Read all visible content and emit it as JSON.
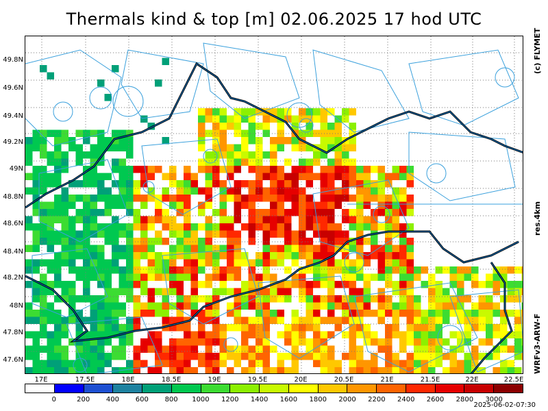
{
  "title": "Thermals kind & top [m]  02.06.2025 17 hod UTC",
  "side_labels": {
    "credit": "(c) FLYMET",
    "resolution": "res.4km",
    "model": "WRFv3-ARW-F"
  },
  "timestamp": "2025-06-02-07:30",
  "lat_labels": [
    "49.8N",
    "49.6N",
    "49.4N",
    "49.2N",
    "49N",
    "48.8N",
    "48.6N",
    "48.4N",
    "48.2N",
    "48N",
    "47.8N",
    "47.6N"
  ],
  "lon_labels": [
    "17E",
    "17.5E",
    "18E",
    "18.5E",
    "19E",
    "19.5E",
    "20E",
    "20.5E",
    "21E",
    "21.5E",
    "22E",
    "22.5E"
  ],
  "legend": {
    "values": [
      "0",
      "200",
      "400",
      "600",
      "800",
      "1000",
      "1200",
      "1400",
      "1600",
      "1800",
      "2000",
      "2200",
      "2400",
      "2600",
      "2800",
      "3000"
    ],
    "colors": [
      "#ffffff",
      "#0000ff",
      "#1e50d2",
      "#1e82a0",
      "#00a078",
      "#00c850",
      "#3cdc32",
      "#8cf000",
      "#c8fa00",
      "#ffff00",
      "#ffc800",
      "#ff9600",
      "#ff6400",
      "#ff2800",
      "#e60000",
      "#c80000",
      "#8c0000"
    ]
  },
  "colors": {
    "frame": "#000000",
    "grid": "#777777",
    "border_black": "#000000",
    "border_blue": "#0078c8",
    "airspace": "#3aa0dc"
  }
}
